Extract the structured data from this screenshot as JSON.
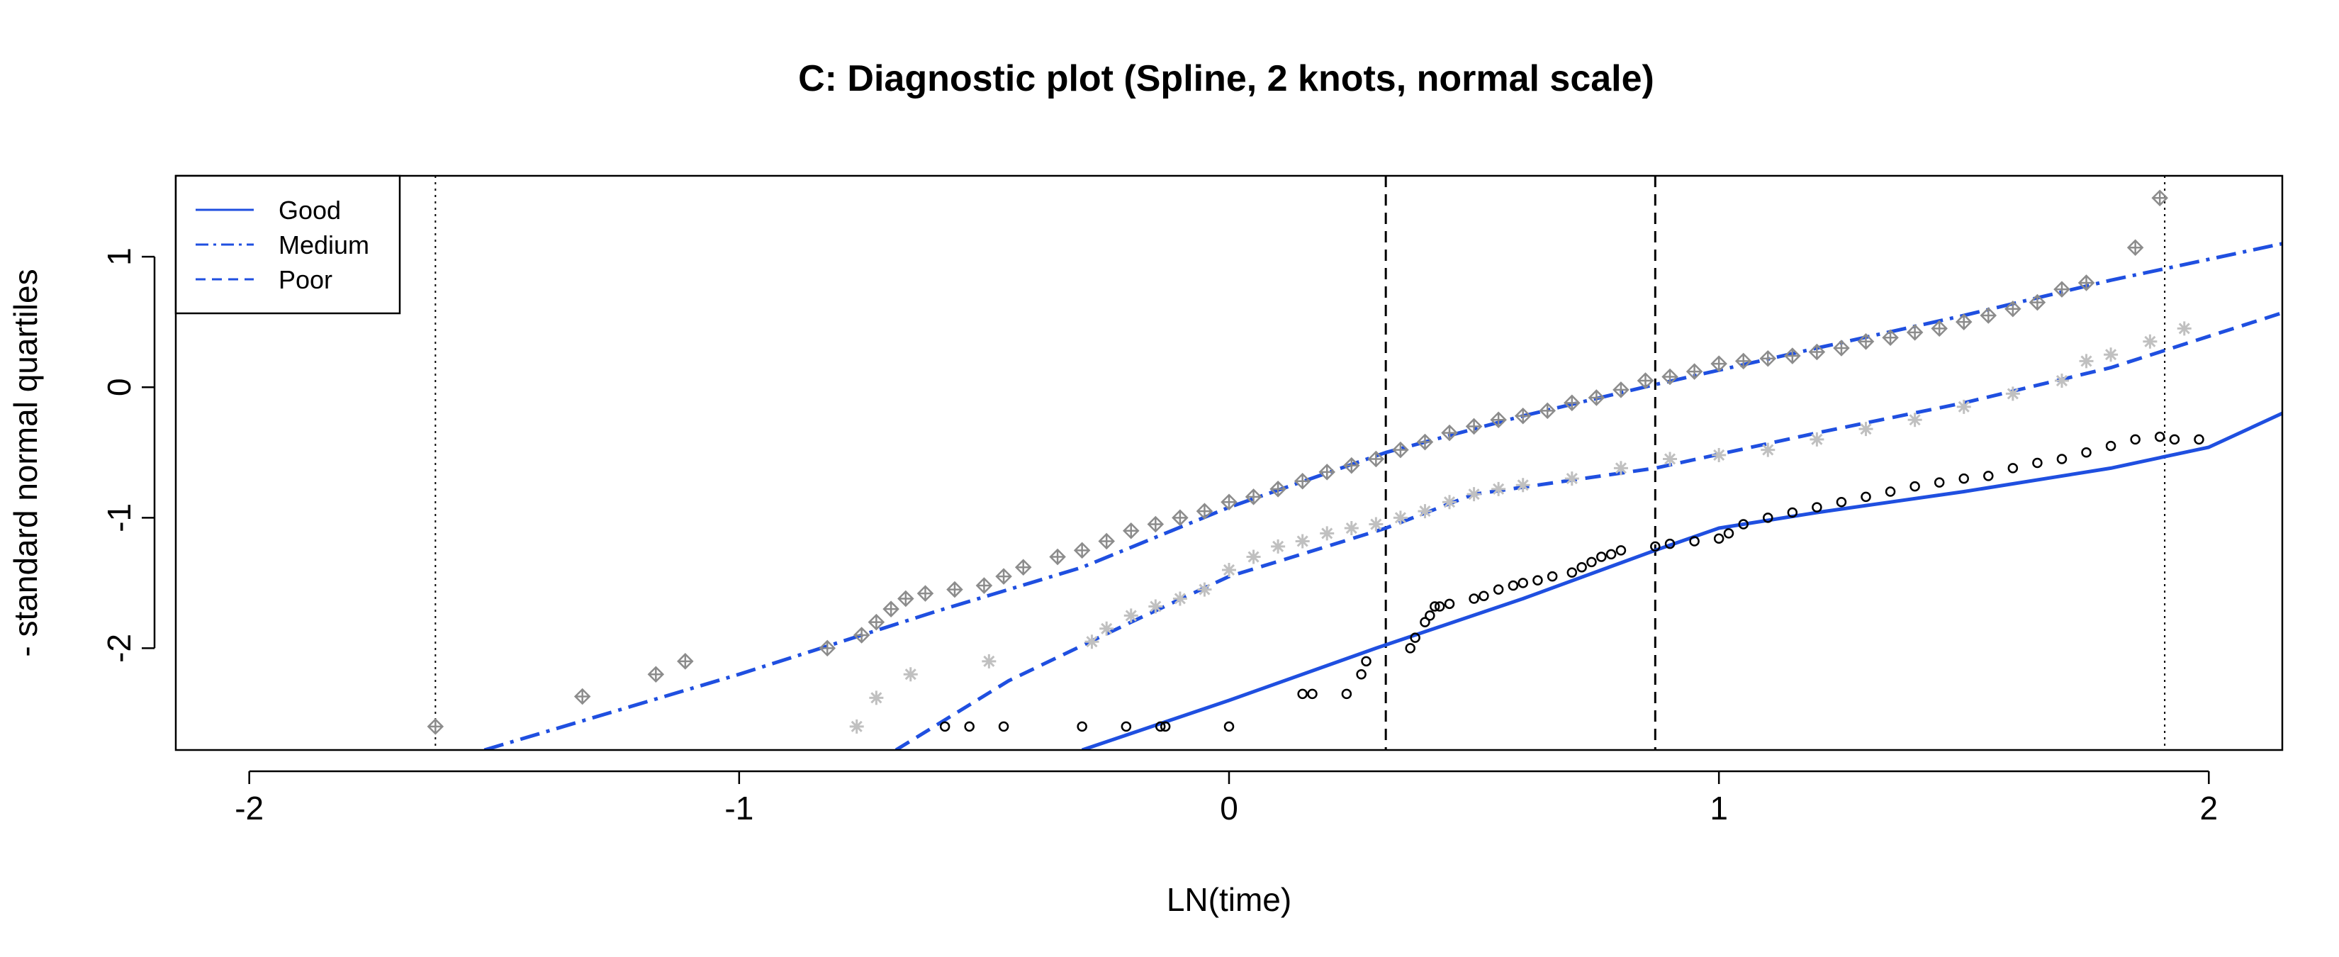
{
  "chart_data": {
    "type": "scatter",
    "title": "C: Diagnostic plot (Spline, 2 knots, normal scale)",
    "xlabel": "LN(time)",
    "ylabel": "- standard normal quartiles",
    "xlim": [
      -2.15,
      2.15
    ],
    "ylim": [
      -2.78,
      1.62
    ],
    "x_ticks": [
      -2,
      -1,
      0,
      1,
      2
    ],
    "y_ticks": [
      -2,
      -1,
      0,
      1
    ],
    "x_tick_labels": [
      "-2",
      "-1",
      "0",
      "1",
      "2"
    ],
    "y_tick_labels": [
      "-2",
      "-1",
      "0",
      "1"
    ],
    "grid": false,
    "legend_position": "top-left",
    "legend": [
      {
        "label": "Good",
        "linestyle": "solid"
      },
      {
        "label": "Medium",
        "linestyle": "dashdot"
      },
      {
        "label": "Poor",
        "linestyle": "dashed"
      }
    ],
    "knots_dashed": [
      0.32,
      0.87
    ],
    "bounds_dotted": [
      -1.62,
      1.91
    ],
    "line_color": "#1f4fe0",
    "fitted_lines": [
      {
        "name": "Good",
        "style": "solid",
        "points": [
          [
            -0.3,
            -2.78
          ],
          [
            0.0,
            -2.4
          ],
          [
            0.3,
            -2.0
          ],
          [
            0.6,
            -1.62
          ],
          [
            0.87,
            -1.25
          ],
          [
            1.0,
            -1.08
          ],
          [
            1.2,
            -0.96
          ],
          [
            1.5,
            -0.8
          ],
          [
            1.8,
            -0.62
          ],
          [
            2.0,
            -0.46
          ],
          [
            2.15,
            -0.2
          ]
        ]
      },
      {
        "name": "Medium",
        "style": "dashdot",
        "points": [
          [
            -1.52,
            -2.78
          ],
          [
            -1.0,
            -2.2
          ],
          [
            -0.6,
            -1.72
          ],
          [
            -0.3,
            -1.38
          ],
          [
            0.0,
            -0.92
          ],
          [
            0.32,
            -0.5
          ],
          [
            0.6,
            -0.22
          ],
          [
            0.87,
            0.02
          ],
          [
            1.2,
            0.3
          ],
          [
            1.5,
            0.55
          ],
          [
            1.8,
            0.82
          ],
          [
            2.15,
            1.1
          ]
        ]
      },
      {
        "name": "Poor",
        "style": "dashed",
        "points": [
          [
            -0.68,
            -2.78
          ],
          [
            -0.45,
            -2.25
          ],
          [
            -0.2,
            -1.8
          ],
          [
            0.0,
            -1.45
          ],
          [
            0.2,
            -1.22
          ],
          [
            0.32,
            -1.08
          ],
          [
            0.5,
            -0.82
          ],
          [
            0.87,
            -0.62
          ],
          [
            1.2,
            -0.35
          ],
          [
            1.5,
            -0.12
          ],
          [
            1.8,
            0.15
          ],
          [
            2.15,
            0.57
          ]
        ]
      }
    ],
    "series": [
      {
        "name": "Good",
        "marker": "circle",
        "color": "#000000",
        "x": [
          -0.58,
          -0.53,
          -0.46,
          -0.3,
          -0.21,
          -0.14,
          -0.13,
          0.0,
          0.15,
          0.17,
          0.24,
          0.27,
          0.28,
          0.37,
          0.38,
          0.4,
          0.41,
          0.42,
          0.43,
          0.45,
          0.5,
          0.52,
          0.55,
          0.58,
          0.6,
          0.63,
          0.66,
          0.7,
          0.72,
          0.74,
          0.76,
          0.78,
          0.8,
          0.87,
          0.9,
          0.95,
          1.0,
          1.02,
          1.05,
          1.1,
          1.15,
          1.2,
          1.25,
          1.3,
          1.35,
          1.4,
          1.45,
          1.5,
          1.55,
          1.6,
          1.65,
          1.7,
          1.75,
          1.8,
          1.85,
          1.9,
          1.93,
          1.98
        ],
        "y": [
          -2.6,
          -2.6,
          -2.6,
          -2.6,
          -2.6,
          -2.6,
          -2.6,
          -2.6,
          -2.35,
          -2.35,
          -2.35,
          -2.2,
          -2.1,
          -2.0,
          -1.92,
          -1.8,
          -1.75,
          -1.68,
          -1.68,
          -1.66,
          -1.62,
          -1.6,
          -1.55,
          -1.52,
          -1.5,
          -1.48,
          -1.45,
          -1.42,
          -1.38,
          -1.34,
          -1.3,
          -1.28,
          -1.25,
          -1.22,
          -1.2,
          -1.18,
          -1.16,
          -1.12,
          -1.05,
          -1.0,
          -0.96,
          -0.92,
          -0.88,
          -0.84,
          -0.8,
          -0.76,
          -0.73,
          -0.7,
          -0.68,
          -0.62,
          -0.58,
          -0.55,
          -0.5,
          -0.45,
          -0.4,
          -0.38,
          -0.4,
          -0.4
        ]
      },
      {
        "name": "Medium",
        "marker": "diamond-plus",
        "color": "#8c8c8c",
        "x": [
          -1.62,
          -1.32,
          -1.17,
          -1.11,
          -0.82,
          -0.75,
          -0.72,
          -0.69,
          -0.66,
          -0.62,
          -0.56,
          -0.5,
          -0.46,
          -0.42,
          -0.35,
          -0.3,
          -0.25,
          -0.2,
          -0.15,
          -0.1,
          -0.05,
          0.0,
          0.05,
          0.1,
          0.15,
          0.2,
          0.25,
          0.3,
          0.35,
          0.4,
          0.45,
          0.5,
          0.55,
          0.6,
          0.65,
          0.7,
          0.75,
          0.8,
          0.85,
          0.9,
          0.95,
          1.0,
          1.05,
          1.1,
          1.15,
          1.2,
          1.25,
          1.3,
          1.35,
          1.4,
          1.45,
          1.5,
          1.55,
          1.6,
          1.65,
          1.7,
          1.75,
          1.85,
          1.9
        ],
        "y": [
          -2.6,
          -2.37,
          -2.2,
          -2.1,
          -2.0,
          -1.9,
          -1.8,
          -1.7,
          -1.62,
          -1.58,
          -1.55,
          -1.52,
          -1.45,
          -1.38,
          -1.3,
          -1.25,
          -1.18,
          -1.1,
          -1.05,
          -1.0,
          -0.95,
          -0.88,
          -0.84,
          -0.78,
          -0.72,
          -0.65,
          -0.6,
          -0.55,
          -0.48,
          -0.42,
          -0.35,
          -0.3,
          -0.25,
          -0.22,
          -0.18,
          -0.12,
          -0.08,
          -0.02,
          0.05,
          0.08,
          0.12,
          0.18,
          0.2,
          0.22,
          0.24,
          0.27,
          0.3,
          0.35,
          0.38,
          0.42,
          0.45,
          0.5,
          0.55,
          0.6,
          0.65,
          0.75,
          0.8,
          1.07,
          1.45
        ]
      },
      {
        "name": "Poor",
        "marker": "asterisk",
        "color": "#c0c0c0",
        "x": [
          -0.76,
          -0.72,
          -0.65,
          -0.49,
          -0.28,
          -0.25,
          -0.2,
          -0.15,
          -0.1,
          -0.05,
          0.0,
          0.05,
          0.1,
          0.15,
          0.2,
          0.25,
          0.3,
          0.35,
          0.4,
          0.45,
          0.5,
          0.55,
          0.6,
          0.7,
          0.8,
          0.9,
          1.0,
          1.1,
          1.2,
          1.3,
          1.4,
          1.5,
          1.6,
          1.7,
          1.75,
          1.8,
          1.88,
          1.95
        ],
        "y": [
          -2.6,
          -2.38,
          -2.2,
          -2.1,
          -1.95,
          -1.85,
          -1.75,
          -1.68,
          -1.62,
          -1.55,
          -1.4,
          -1.3,
          -1.22,
          -1.18,
          -1.12,
          -1.08,
          -1.05,
          -1.0,
          -0.95,
          -0.88,
          -0.82,
          -0.78,
          -0.75,
          -0.7,
          -0.62,
          -0.55,
          -0.52,
          -0.48,
          -0.4,
          -0.32,
          -0.25,
          -0.15,
          -0.05,
          0.05,
          0.2,
          0.25,
          0.35,
          0.45
        ]
      }
    ]
  }
}
